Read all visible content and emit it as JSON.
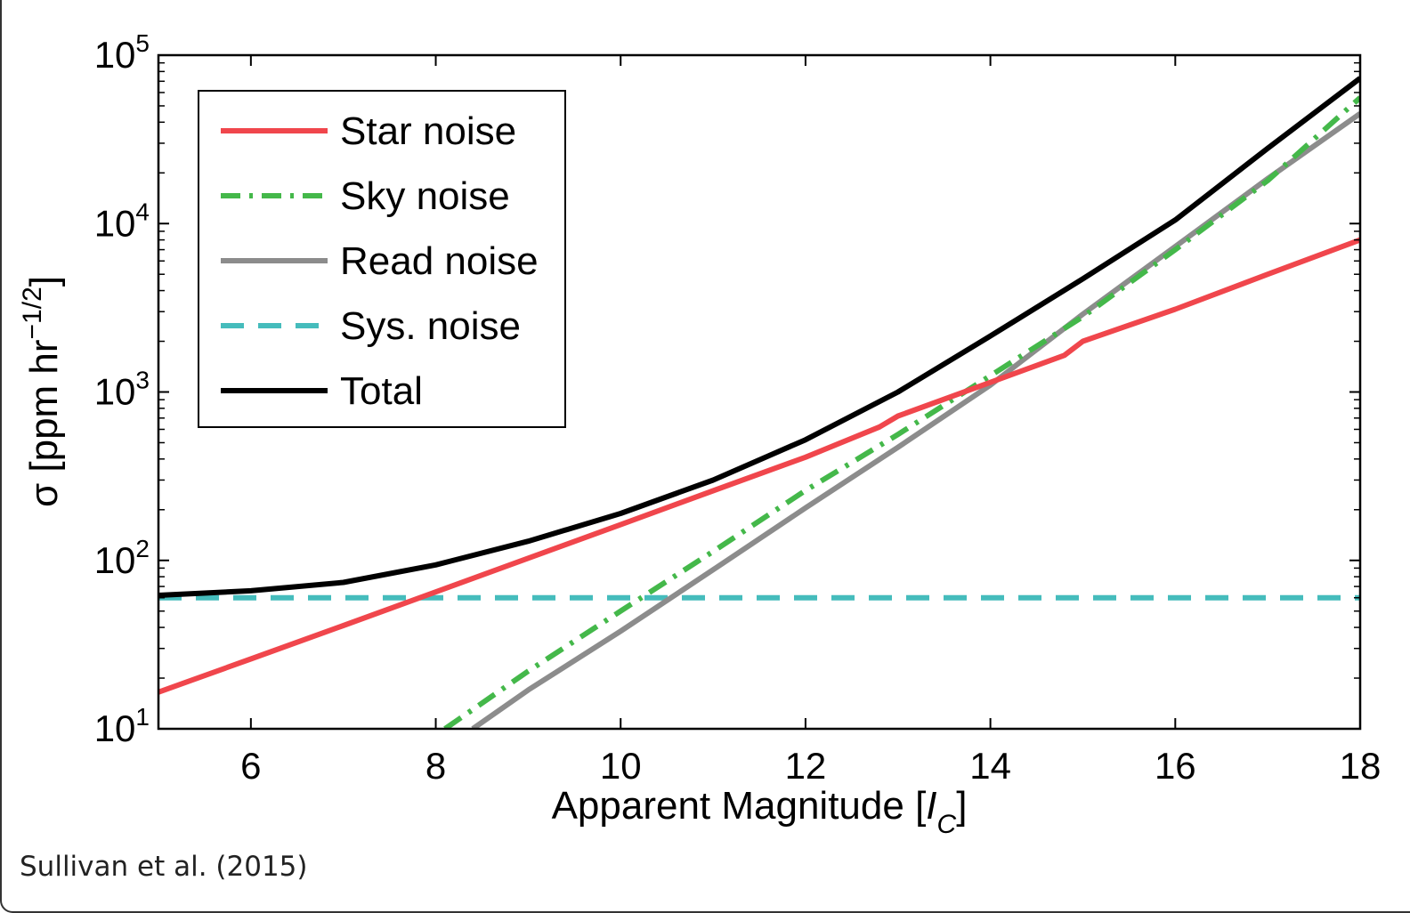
{
  "credit": "Sullivan et al. (2015)",
  "chart_data": {
    "type": "line",
    "title": "",
    "xlabel": "Apparent Magnitude [",
    "xlabel_var": "I",
    "xlabel_sub": "C",
    "xlabel_close": "]",
    "ylabel": "σ [ppm hr",
    "ylabel_sup": "−1/2",
    "ylabel_close": "]",
    "xlim": [
      5,
      18
    ],
    "ylim": [
      10,
      100000
    ],
    "yscale": "log",
    "grid": false,
    "legend_position": "top-left",
    "x_ticks": [
      6,
      8,
      10,
      12,
      14,
      16,
      18
    ],
    "x_tick_labels": [
      "6",
      "8",
      "10",
      "12",
      "14",
      "16",
      "18"
    ],
    "y_ticks": [
      10,
      100,
      1000,
      10000,
      100000
    ],
    "y_tick_base": "10",
    "y_tick_exponents": [
      "1",
      "2",
      "3",
      "4",
      "5"
    ],
    "series": [
      {
        "name": "Star noise",
        "color": "#f0464c",
        "dash": "solid",
        "x": [
          5,
          6,
          7,
          8,
          9,
          10,
          11,
          12,
          12.8,
          13,
          14,
          14.8,
          15,
          16,
          17,
          18
        ],
        "y": [
          16.5,
          26,
          41,
          65,
          103,
          163,
          259,
          410,
          620,
          720,
          1140,
          1650,
          2000,
          3100,
          5000,
          8000
        ]
      },
      {
        "name": "Sky noise",
        "color": "#44b84a",
        "dash": "dashdot",
        "x": [
          8.1,
          9,
          10,
          11,
          12,
          13,
          14,
          15,
          16,
          17,
          18
        ],
        "y": [
          10,
          22,
          50,
          113,
          260,
          560,
          1250,
          2800,
          7000,
          18000,
          56000
        ]
      },
      {
        "name": "Read noise",
        "color": "#8c8c8c",
        "dash": "solid",
        "x": [
          8.4,
          9,
          10,
          11,
          12,
          13,
          14,
          15,
          16,
          17,
          18
        ],
        "y": [
          10,
          17,
          38,
          88,
          205,
          470,
          1100,
          2900,
          7300,
          18500,
          45000
        ]
      },
      {
        "name": "Sys. noise",
        "color": "#45bcbc",
        "dash": "dashed",
        "x": [
          5,
          18
        ],
        "y": [
          60,
          60
        ]
      },
      {
        "name": "Total",
        "color": "#000000",
        "dash": "solid",
        "x": [
          5,
          6,
          7,
          8,
          9,
          10,
          11,
          12,
          13,
          14,
          15,
          16,
          17,
          18
        ],
        "y": [
          62,
          66,
          74,
          94,
          130,
          190,
          300,
          520,
          1000,
          2150,
          4700,
          10500,
          28000,
          73000
        ]
      }
    ]
  }
}
